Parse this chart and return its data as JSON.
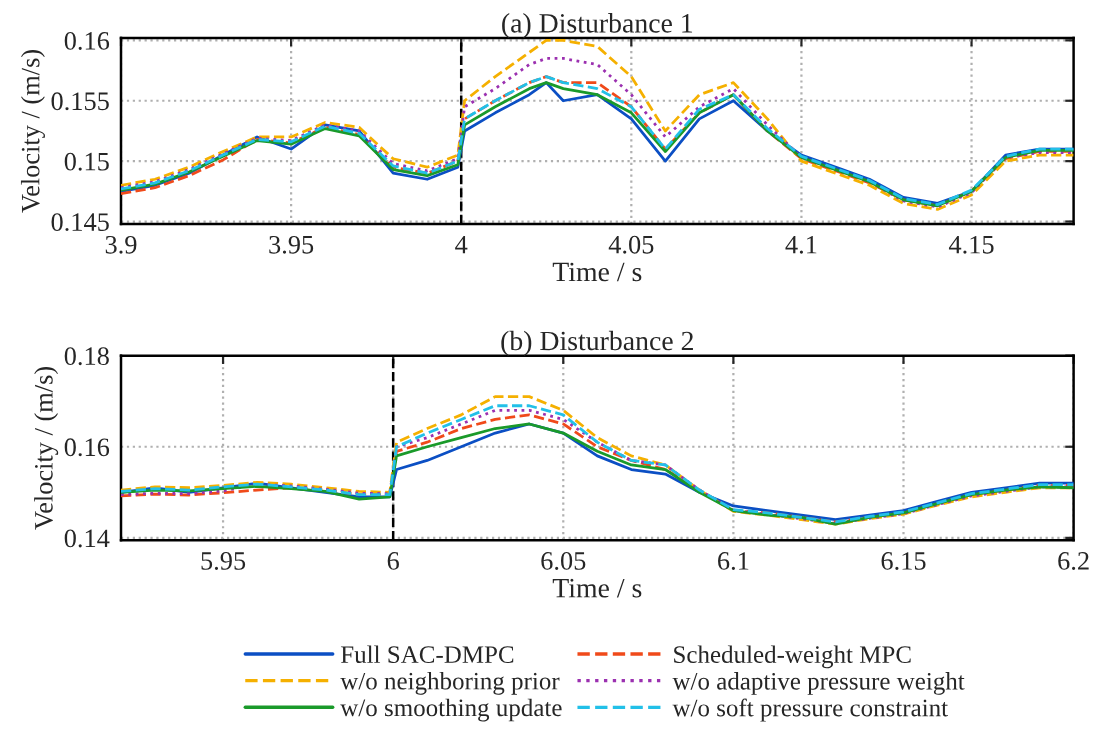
{
  "chart_data": [
    {
      "type": "line",
      "title": "(a) Disturbance 1",
      "xlabel": "Time / s",
      "ylabel": "Velocity / (m/s)",
      "legend": "bottom",
      "x": [
        3.9,
        3.91,
        3.92,
        3.93,
        3.94,
        3.95,
        3.96,
        3.97,
        3.98,
        3.99,
        3.999,
        4.001,
        4.01,
        4.02,
        4.025,
        4.03,
        4.04,
        4.05,
        4.06,
        4.07,
        4.08,
        4.09,
        4.1,
        4.11,
        4.12,
        4.13,
        4.14,
        4.15,
        4.16,
        4.17,
        4.18
      ],
      "xlim": [
        3.9,
        4.18
      ],
      "xticks": [
        3.9,
        3.95,
        {
          "value": 4,
          "label": "4"
        },
        4.05,
        4.1,
        4.15
      ],
      "ylim": [
        0.1448,
        0.1602
      ],
      "yticks": [
        0.145,
        0.15,
        0.155,
        0.16
      ],
      "grid": true,
      "ref_lines": [
        {
          "axis": "x",
          "value": 4,
          "color": "#000000",
          "line_style": "dashed"
        }
      ],
      "series": [
        {
          "name": "Full SAC-DMPC",
          "color": "#0b4fc4",
          "line_style": "solid",
          "values": [
            0.1475,
            0.148,
            0.149,
            0.1505,
            0.152,
            0.151,
            0.153,
            0.1525,
            0.149,
            0.1485,
            0.1495,
            0.1525,
            0.154,
            0.1555,
            0.1565,
            0.155,
            0.1555,
            0.1535,
            0.15,
            0.1535,
            0.155,
            0.1525,
            0.1505,
            0.1495,
            0.1485,
            0.147,
            0.1465,
            0.1475,
            0.1505,
            0.151,
            0.151
          ]
        },
        {
          "name": "Scheduled-weight MPC",
          "color": "#f04a1a",
          "line_style": "dashed",
          "values": [
            0.1473,
            0.1478,
            0.1488,
            0.1501,
            0.1518,
            0.1515,
            0.1528,
            0.1522,
            0.1495,
            0.149,
            0.15,
            0.1535,
            0.155,
            0.1565,
            0.157,
            0.1565,
            0.1565,
            0.1545,
            0.151,
            0.154,
            0.1555,
            0.1525,
            0.1502,
            0.1492,
            0.1482,
            0.1468,
            0.1463,
            0.1475,
            0.1502,
            0.1508,
            0.1508
          ]
        },
        {
          "name": "w/o neighboring prior",
          "color": "#f5b000",
          "line_style": "dashed",
          "values": [
            0.148,
            0.1485,
            0.1495,
            0.1508,
            0.152,
            0.152,
            0.1532,
            0.1528,
            0.1502,
            0.1495,
            0.1505,
            0.155,
            0.157,
            0.159,
            0.16,
            0.16,
            0.1595,
            0.157,
            0.1525,
            0.1555,
            0.1565,
            0.1535,
            0.15,
            0.149,
            0.148,
            0.1465,
            0.146,
            0.1472,
            0.15,
            0.1505,
            0.1505
          ]
        },
        {
          "name": "w/o adaptive pressure weight",
          "color": "#9b30b0",
          "line_style": "dotted",
          "values": [
            0.1478,
            0.1483,
            0.1493,
            0.1506,
            0.1519,
            0.1517,
            0.153,
            0.1525,
            0.1498,
            0.1492,
            0.1502,
            0.1545,
            0.156,
            0.158,
            0.1585,
            0.1585,
            0.158,
            0.1555,
            0.152,
            0.1545,
            0.156,
            0.153,
            0.1503,
            0.1493,
            0.1483,
            0.1467,
            0.1462,
            0.1474,
            0.1503,
            0.1507,
            0.1507
          ]
        },
        {
          "name": "w/o smoothing update",
          "color": "#1a9a2a",
          "line_style": "solid",
          "values": [
            0.1476,
            0.1481,
            0.1491,
            0.1504,
            0.1517,
            0.1514,
            0.1527,
            0.1521,
            0.1493,
            0.1488,
            0.1497,
            0.153,
            0.1545,
            0.156,
            0.1565,
            0.156,
            0.1555,
            0.154,
            0.1508,
            0.154,
            0.1555,
            0.1525,
            0.1503,
            0.1493,
            0.1483,
            0.1468,
            0.1463,
            0.1475,
            0.1503,
            0.1509,
            0.1509
          ]
        },
        {
          "name": "w/o soft pressure constraint",
          "color": "#22c0e8",
          "line_style": "dashed",
          "values": [
            0.1477,
            0.1482,
            0.1492,
            0.1505,
            0.1518,
            0.1516,
            0.1529,
            0.1523,
            0.1496,
            0.149,
            0.15,
            0.1535,
            0.155,
            0.1565,
            0.157,
            0.1565,
            0.156,
            0.1545,
            0.151,
            0.1543,
            0.1555,
            0.1527,
            0.1504,
            0.1494,
            0.1484,
            0.1469,
            0.1464,
            0.1476,
            0.1504,
            0.151,
            0.151
          ]
        }
      ]
    },
    {
      "type": "line",
      "title": "(b) Disturbance 2",
      "xlabel": "Time / s",
      "ylabel": "Velocity / (m/s)",
      "x": [
        5.92,
        5.93,
        5.94,
        5.95,
        5.96,
        5.97,
        5.98,
        5.99,
        5.999,
        6.001,
        6.01,
        6.02,
        6.03,
        6.04,
        6.05,
        6.06,
        6.07,
        6.08,
        6.09,
        6.1,
        6.11,
        6.12,
        6.13,
        6.14,
        6.15,
        6.16,
        6.17,
        6.18,
        6.19,
        6.2
      ],
      "xlim": [
        5.92,
        6.2
      ],
      "xticks": [
        5.95,
        {
          "value": 6,
          "label": "6"
        },
        6.05,
        6.1,
        6.15,
        6.2
      ],
      "ylim": [
        0.1395,
        0.18
      ],
      "yticks": [
        0.14,
        0.16,
        0.18
      ],
      "grid": true,
      "ref_lines": [
        {
          "axis": "x",
          "value": 6,
          "color": "#000000",
          "line_style": "dashed"
        }
      ],
      "series": [
        {
          "color": "#0b4fc4",
          "line_style": "solid",
          "values": [
            0.15,
            0.151,
            0.15,
            0.151,
            0.152,
            0.151,
            0.15,
            0.149,
            0.149,
            0.155,
            0.157,
            0.16,
            0.163,
            0.165,
            0.163,
            0.158,
            0.155,
            0.154,
            0.15,
            0.147,
            0.146,
            0.145,
            0.144,
            0.145,
            0.146,
            0.148,
            0.15,
            0.151,
            0.152,
            0.152
          ]
        },
        {
          "color": "#f04a1a",
          "line_style": "dashed",
          "values": [
            0.1492,
            0.1496,
            0.1494,
            0.1499,
            0.1505,
            0.151,
            0.1505,
            0.1495,
            0.1495,
            0.159,
            0.161,
            0.164,
            0.166,
            0.167,
            0.165,
            0.16,
            0.157,
            0.155,
            0.1505,
            0.146,
            0.1455,
            0.1445,
            0.1435,
            0.1445,
            0.1455,
            0.1475,
            0.1495,
            0.1505,
            0.1515,
            0.1515
          ]
        },
        {
          "color": "#f5b000",
          "line_style": "dashed",
          "values": [
            0.1505,
            0.1512,
            0.151,
            0.1515,
            0.1522,
            0.1518,
            0.151,
            0.1502,
            0.15,
            0.161,
            0.164,
            0.167,
            0.171,
            0.171,
            0.168,
            0.162,
            0.158,
            0.156,
            0.1505,
            0.1458,
            0.145,
            0.144,
            0.143,
            0.1442,
            0.1452,
            0.1472,
            0.149,
            0.15,
            0.151,
            0.151
          ]
        },
        {
          "color": "#9b30b0",
          "line_style": "dotted",
          "values": [
            0.1495,
            0.1498,
            0.1497,
            0.1503,
            0.1518,
            0.1514,
            0.1507,
            0.1498,
            0.1497,
            0.16,
            0.162,
            0.165,
            0.168,
            0.168,
            0.166,
            0.161,
            0.157,
            0.156,
            0.1505,
            0.146,
            0.1452,
            0.1442,
            0.1432,
            0.1443,
            0.1453,
            0.1473,
            0.1492,
            0.1502,
            0.1512,
            0.1512
          ]
        },
        {
          "color": "#1a9a2a",
          "line_style": "solid",
          "values": [
            0.15,
            0.1505,
            0.1503,
            0.1508,
            0.1513,
            0.1508,
            0.1502,
            0.1485,
            0.149,
            0.158,
            0.16,
            0.162,
            0.164,
            0.165,
            0.163,
            0.159,
            0.156,
            0.155,
            0.15,
            0.146,
            0.145,
            0.1445,
            0.143,
            0.1445,
            0.1455,
            0.1475,
            0.1495,
            0.1505,
            0.1512,
            0.151
          ]
        },
        {
          "color": "#22c0e8",
          "line_style": "dashed",
          "values": [
            0.1502,
            0.1508,
            0.1505,
            0.1512,
            0.1518,
            0.1512,
            0.1505,
            0.1495,
            0.1495,
            0.16,
            0.163,
            0.166,
            0.169,
            0.169,
            0.167,
            0.161,
            0.157,
            0.156,
            0.1505,
            0.1462,
            0.1455,
            0.1445,
            0.1435,
            0.1447,
            0.1457,
            0.1477,
            0.1497,
            0.1507,
            0.1517,
            0.1517
          ]
        }
      ]
    }
  ]
}
